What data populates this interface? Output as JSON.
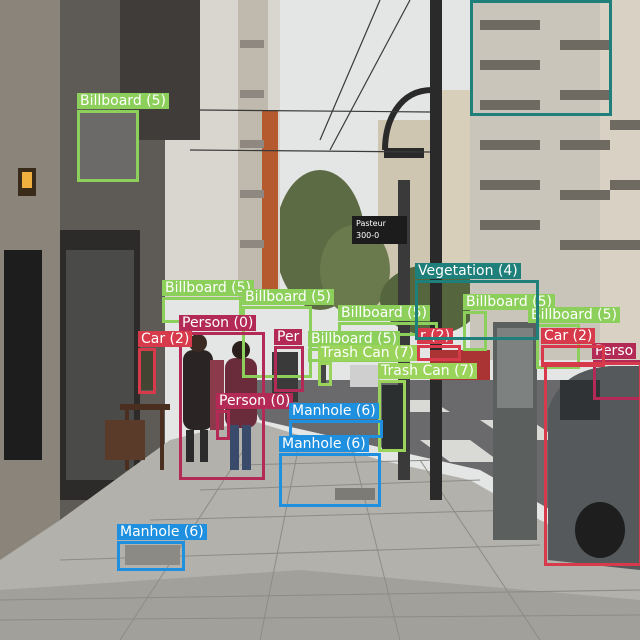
{
  "colors": {
    "Billboard": "#8ccf5a",
    "Person": "#b22a55",
    "Car": "#d73a4a",
    "Manhole": "#1f8fe0",
    "Trash Can": "#9bd45a",
    "Vegetation": "#1f7f7a"
  },
  "annotations": [
    {
      "text": "Billboard (5)",
      "cls": "Billboard"
    },
    {
      "text": "Billboard (5)",
      "cls": "Billboard"
    },
    {
      "text": "Billboard (5)",
      "cls": "Billboard"
    },
    {
      "text": "Billboard (5)",
      "cls": "Billboard"
    },
    {
      "text": "Billboard (5)",
      "cls": "Billboard"
    },
    {
      "text": "Billboard (5)",
      "cls": "Billboard"
    },
    {
      "text": "Billboard (5)",
      "cls": "Billboard"
    },
    {
      "text": "Person (0)",
      "cls": "Person"
    },
    {
      "text": "Person (0)",
      "cls": "Person"
    },
    {
      "text": "Per",
      "cls": "Person"
    },
    {
      "text": "Perso",
      "cls": "Person"
    },
    {
      "text": "Car (2)",
      "cls": "Car"
    },
    {
      "text": "Car (2)",
      "cls": "Car"
    },
    {
      "text": "r (2)",
      "cls": "Car"
    },
    {
      "text": "Trash Can (7)",
      "cls": "Trash Can"
    },
    {
      "text": "Trash Can (7)",
      "cls": "Trash Can"
    },
    {
      "text": "Manhole (6)",
      "cls": "Manhole"
    },
    {
      "text": "Manhole (6)",
      "cls": "Manhole"
    },
    {
      "text": "Manhole (6)",
      "cls": "Manhole"
    },
    {
      "text": "Vegetation (4)",
      "cls": "Vegetation"
    }
  ],
  "street_sign": {
    "line1": "Pasteur",
    "line2": "300-0"
  }
}
